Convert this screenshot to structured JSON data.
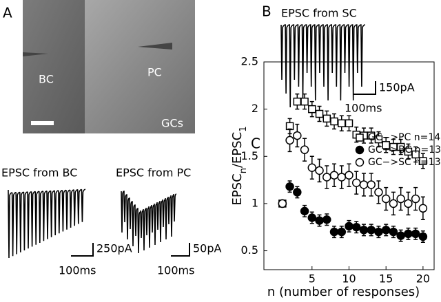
{
  "panel_labels": [
    "A",
    "B",
    "C"
  ],
  "image_labels": [
    "BC",
    "PC",
    "GCs"
  ],
  "traces": [
    {
      "title": "EPSC from SC",
      "scale_current": "150pA",
      "scale_time": "100ms"
    },
    {
      "title": "EPSC from BC",
      "scale_current": "250pA",
      "scale_time": "100ms"
    },
    {
      "title": "EPSC from PC",
      "scale_current": "50pA",
      "scale_time": "100ms"
    }
  ],
  "chart_data": {
    "type": "scatter",
    "xlabel": "n (number of responses)",
    "ylabel_parts": [
      "EPSC",
      "n",
      "/EPSC",
      "1"
    ],
    "x": [
      1,
      2,
      3,
      4,
      5,
      6,
      7,
      8,
      9,
      10,
      11,
      12,
      13,
      14,
      15,
      16,
      17,
      18,
      19,
      20
    ],
    "xlim": [
      -1.5,
      21.5
    ],
    "xticks": [
      5,
      10,
      15,
      20
    ],
    "ylim": [
      0.3,
      2.5
    ],
    "yticks": [
      0.5,
      1,
      1.5,
      2,
      2.5
    ],
    "legend": "upper right",
    "series": [
      {
        "name": "GC−>PC n=14",
        "marker": "open-square",
        "color": "#000000",
        "values": [
          1,
          1.82,
          2.08,
          2.08,
          2.0,
          1.95,
          1.9,
          1.87,
          1.85,
          1.85,
          1.73,
          1.72,
          1.72,
          1.68,
          1.62,
          1.6,
          1.6,
          1.55,
          1.52,
          1.45
        ],
        "errors": [
          0,
          0.08,
          0.08,
          0.08,
          0.08,
          0.08,
          0.08,
          0.08,
          0.08,
          0.08,
          0.08,
          0.08,
          0.08,
          0.08,
          0.08,
          0.08,
          0.08,
          0.08,
          0.08,
          0.08
        ]
      },
      {
        "name": "GC−>BC n=13",
        "marker": "filled-circle",
        "color": "#000000",
        "values": [
          1.0,
          1.18,
          1.12,
          0.92,
          0.85,
          0.82,
          0.83,
          0.7,
          0.7,
          0.76,
          0.75,
          0.72,
          0.72,
          0.7,
          0.72,
          0.7,
          0.66,
          0.68,
          0.68,
          0.65
        ],
        "errors": [
          0,
          0.06,
          0.06,
          0.06,
          0.06,
          0.06,
          0.06,
          0.06,
          0.06,
          0.06,
          0.06,
          0.06,
          0.06,
          0.06,
          0.06,
          0.06,
          0.06,
          0.06,
          0.06,
          0.06
        ]
      },
      {
        "name": "GC−>SC n=13",
        "marker": "open-circle",
        "color": "#000000",
        "values": [
          1,
          1.67,
          1.72,
          1.57,
          1.38,
          1.35,
          1.28,
          1.3,
          1.28,
          1.3,
          1.22,
          1.2,
          1.2,
          1.12,
          1.05,
          1.0,
          1.05,
          1.0,
          1.05,
          0.95
        ],
        "errors": [
          0,
          0.12,
          0.12,
          0.12,
          0.12,
          0.12,
          0.12,
          0.12,
          0.12,
          0.12,
          0.12,
          0.12,
          0.12,
          0.12,
          0.12,
          0.12,
          0.12,
          0.12,
          0.12,
          0.12
        ]
      }
    ]
  }
}
